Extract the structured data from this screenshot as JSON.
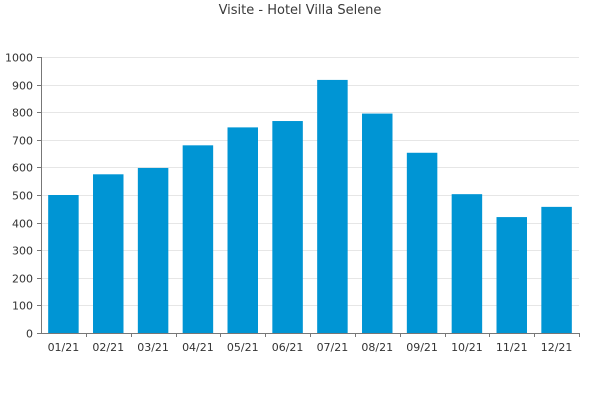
{
  "chart_data": {
    "type": "bar",
    "title": "Visite - Hotel Villa Selene",
    "xlabel": "",
    "ylabel": "",
    "categories": [
      "01/21",
      "02/21",
      "03/21",
      "04/21",
      "05/21",
      "06/21",
      "07/21",
      "08/21",
      "09/21",
      "10/21",
      "11/21",
      "12/21"
    ],
    "values": [
      500,
      575,
      598,
      680,
      745,
      768,
      917,
      795,
      653,
      503,
      420,
      457
    ],
    "ylim": [
      0,
      1000
    ],
    "yticks": [
      0,
      100,
      200,
      300,
      400,
      500,
      600,
      700,
      800,
      900,
      1000
    ],
    "grid": true,
    "legend": "none",
    "bar_color": "#0095d4",
    "grid_color": "#e6e6e6",
    "axis_color": "#777777"
  }
}
